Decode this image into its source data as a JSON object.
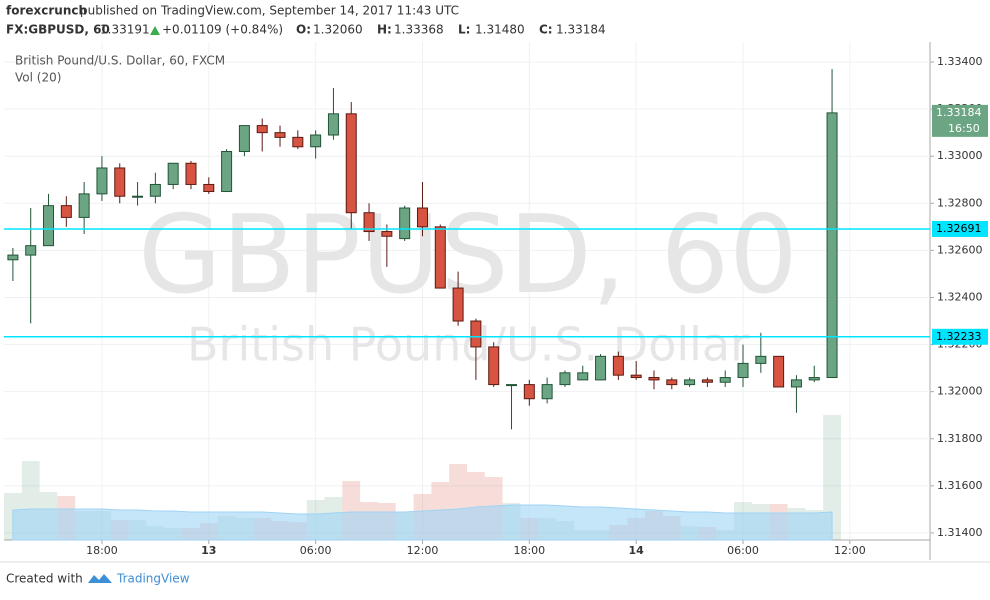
{
  "header": {
    "author": "forexcrunch",
    "published": "published on TradingView.com, September 14, 2017 11:43 UTC",
    "symbol": "FX:GBPUSD, 60",
    "price": "1.33191",
    "change": "+0.01109 (+0.84%)",
    "ohlc": [
      {
        "label": "O:",
        "value": "1.32060"
      },
      {
        "label": "H:",
        "value": "1.33368"
      },
      {
        "label": "L:",
        "value": "1.31480"
      },
      {
        "label": "C:",
        "value": "1.33184"
      }
    ]
  },
  "chart_data": {
    "type": "candlestick",
    "title": "British Pound/U.S. Dollar, 60, FXCM",
    "volume_label": "Vol (20)",
    "watermark": "GBPUSD, 60",
    "watermark_subtitle": "British Pound/U.S. Dollar",
    "categories": [
      null,
      null,
      null,
      null,
      null,
      "18:00",
      null,
      null,
      null,
      null,
      null,
      "13",
      null,
      null,
      null,
      null,
      null,
      "06:00",
      null,
      null,
      null,
      null,
      null,
      "12:00",
      null,
      null,
      null,
      null,
      null,
      "18:00",
      null,
      null,
      null,
      null,
      null,
      "14",
      null,
      null,
      null,
      null,
      null,
      "06:00",
      null,
      null,
      null,
      null,
      null,
      "12:00",
      null,
      null,
      null,
      null
    ],
    "open": [
      1.3256,
      1.3258,
      1.3262,
      1.3279,
      1.3274,
      1.3284,
      1.3295,
      1.3283,
      1.3283,
      1.3288,
      1.3297,
      1.3288,
      1.3285,
      1.3302,
      1.3313,
      1.331,
      1.3308,
      1.3304,
      1.3309,
      1.3318,
      1.3276,
      1.3268,
      1.3265,
      1.3278,
      1.327,
      1.3244,
      1.323,
      1.3219,
      1.3203,
      1.3203,
      1.3197,
      1.3203,
      1.3205,
      1.3205,
      1.3215,
      1.3207,
      1.3206,
      1.3205,
      1.3203,
      1.3205,
      1.3204,
      1.3206,
      1.3212,
      1.3215,
      1.3202,
      1.3205,
      1.3206,
      null,
      null,
      null,
      null,
      null
    ],
    "high": [
      1.3261,
      1.3278,
      1.3284,
      1.3283,
      1.3289,
      1.33,
      1.3297,
      1.3289,
      1.3293,
      1.3297,
      1.3298,
      1.3291,
      1.3303,
      1.3313,
      1.3316,
      1.3313,
      1.3311,
      1.3311,
      1.3329,
      1.3323,
      1.328,
      1.3271,
      1.3279,
      1.3289,
      1.3271,
      1.3251,
      1.3231,
      1.3221,
      1.3203,
      1.3205,
      1.3206,
      1.3209,
      1.3211,
      1.3216,
      1.3217,
      1.3213,
      1.3209,
      1.3206,
      1.3206,
      1.3206,
      1.3209,
      1.322,
      1.3225,
      1.3215,
      1.3207,
      1.3211,
      1.3337,
      null,
      null,
      null,
      null,
      null
    ],
    "low": [
      1.3247,
      1.3229,
      1.3262,
      1.327,
      1.3267,
      1.3281,
      1.328,
      1.3279,
      1.328,
      1.3286,
      1.3286,
      1.3284,
      1.3285,
      1.33,
      1.3302,
      1.3304,
      1.3303,
      1.3299,
      1.3307,
      1.3269,
      1.3264,
      1.3253,
      1.3264,
      1.3266,
      1.3244,
      1.3228,
      1.3205,
      1.3202,
      1.3184,
      1.3194,
      1.3195,
      1.3202,
      1.3205,
      1.3205,
      1.3205,
      1.3205,
      1.3201,
      1.3201,
      1.3202,
      1.3202,
      1.3202,
      1.3202,
      1.3208,
      1.3202,
      1.3191,
      1.3204,
      1.3206,
      null,
      null,
      null,
      null,
      null
    ],
    "close": [
      1.3258,
      1.3262,
      1.3279,
      1.3274,
      1.3284,
      1.3295,
      1.3283,
      1.3283,
      1.3288,
      1.3297,
      1.3288,
      1.3285,
      1.3302,
      1.3313,
      1.331,
      1.3308,
      1.3304,
      1.3309,
      1.3318,
      1.3276,
      1.3268,
      1.3266,
      1.3278,
      1.327,
      1.3244,
      1.323,
      1.3219,
      1.3203,
      1.3203,
      1.3197,
      1.3203,
      1.3208,
      1.3208,
      1.3215,
      1.3207,
      1.3206,
      1.3205,
      1.3203,
      1.3205,
      1.3204,
      1.3206,
      1.3212,
      1.3215,
      1.3202,
      1.3205,
      1.3206,
      1.33184,
      null,
      null,
      null,
      null,
      null
    ],
    "volume": [
      47,
      79,
      48,
      44,
      29,
      29,
      20,
      20,
      14,
      12,
      12,
      17,
      24,
      22,
      22,
      19,
      18,
      40,
      43,
      59,
      38,
      37,
      28,
      46,
      58,
      76,
      68,
      63,
      37,
      22,
      22,
      19,
      10,
      10,
      15,
      22,
      29,
      24,
      14,
      13,
      10,
      38,
      36,
      36,
      32,
      30,
      125,
      null,
      null,
      null,
      null,
      null
    ],
    "volume_ma": [
      30,
      31,
      31,
      31,
      31,
      31,
      30,
      30,
      29,
      29,
      28,
      28,
      28,
      28,
      28,
      27,
      26,
      26,
      27,
      28,
      28,
      28,
      28,
      29,
      30,
      31,
      33,
      34,
      35,
      35,
      35,
      34,
      33,
      33,
      32,
      31,
      30,
      29,
      28,
      28,
      27,
      27,
      27,
      27,
      27,
      27,
      28,
      null,
      null,
      null,
      null,
      null
    ],
    "up_color": "#6ba583",
    "down_color": "#d75442",
    "volume_ma_color": "#9fd3f5",
    "ylim": [
      1.3137,
      1.33485
    ],
    "yticks": [
      {
        "value": 1.314,
        "label": "1.31400"
      },
      {
        "value": 1.316,
        "label": "1.31600"
      },
      {
        "value": 1.318,
        "label": "1.31800"
      },
      {
        "value": 1.32,
        "label": "1.32000"
      },
      {
        "value": 1.322,
        "label": "1.32200"
      },
      {
        "value": 1.324,
        "label": "1.32400"
      },
      {
        "value": 1.326,
        "label": "1.32600"
      },
      {
        "value": 1.328,
        "label": "1.32800"
      },
      {
        "value": 1.33,
        "label": "1.33000"
      },
      {
        "value": 1.332,
        "label": "1.33200"
      },
      {
        "value": 1.334,
        "label": "1.33400"
      }
    ],
    "grid": true,
    "hlines": [
      {
        "value": 1.32691,
        "color": "#00e5ff"
      },
      {
        "value": 1.32233,
        "color": "#00e5ff"
      }
    ],
    "last_price": 1.33184,
    "countdown": "16:50"
  },
  "footer": {
    "created": "Created with",
    "brand": "TradingView"
  }
}
